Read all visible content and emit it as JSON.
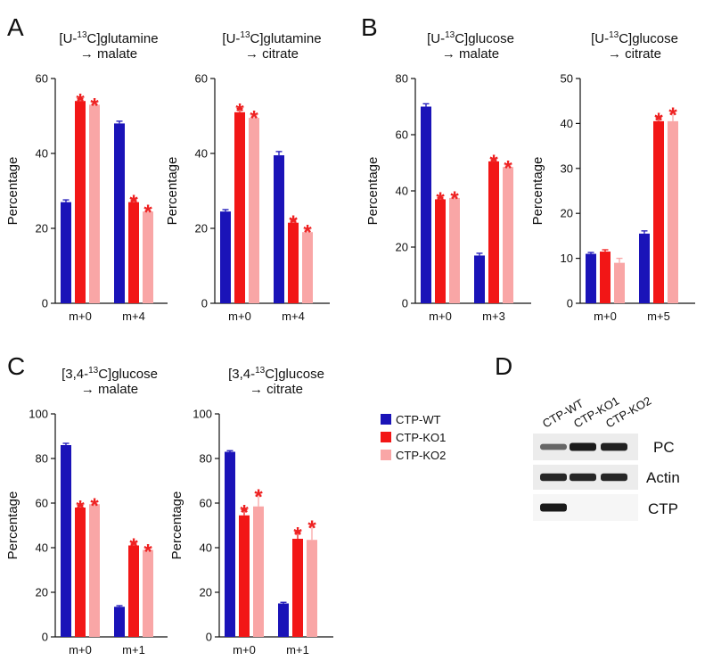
{
  "panels": {
    "A": "A",
    "B": "B",
    "C": "C",
    "D": "D"
  },
  "colors": {
    "CTP-WT": "#1a13b8",
    "CTP-KO1": "#f21616",
    "CTP-KO2": "#f9a6a6",
    "star": "#ee2222",
    "axis": "#111111"
  },
  "legend": [
    "CTP-WT",
    "CTP-KO1",
    "CTP-KO2"
  ],
  "ylabel": "Percentage",
  "chart_data": [
    {
      "type": "bar",
      "panel": "A",
      "title_prefix": "[U-",
      "title_sup": "13",
      "title_suffix": "C]glutamine",
      "title_line2": "→ malate",
      "ylabel": "Percentage",
      "ylim": [
        0,
        60
      ],
      "yticks": [
        0,
        20,
        40,
        60
      ],
      "categories": [
        "m+0",
        "m+4"
      ],
      "series": [
        {
          "name": "CTP-WT",
          "values": [
            27,
            48
          ],
          "errors": [
            0.6,
            0.6
          ]
        },
        {
          "name": "CTP-KO1",
          "values": [
            54,
            27
          ],
          "errors": [
            0.6,
            0.6
          ]
        },
        {
          "name": "CTP-KO2",
          "values": [
            53,
            24.5
          ],
          "errors": [
            0.5,
            0.5
          ]
        }
      ],
      "significant": [
        [
          false,
          true,
          true
        ],
        [
          false,
          true,
          true
        ]
      ]
    },
    {
      "type": "bar",
      "panel": "A",
      "title_prefix": "[U-",
      "title_sup": "13",
      "title_suffix": "C]glutamine",
      "title_line2": "→ citrate",
      "ylabel": "Percentage",
      "ylim": [
        0,
        60
      ],
      "yticks": [
        0,
        20,
        40,
        60
      ],
      "categories": [
        "m+0",
        "m+4"
      ],
      "series": [
        {
          "name": "CTP-WT",
          "values": [
            24.5,
            39.5
          ],
          "errors": [
            0.5,
            1.0
          ]
        },
        {
          "name": "CTP-KO1",
          "values": [
            51,
            21.5
          ],
          "errors": [
            1.0,
            0.7
          ]
        },
        {
          "name": "CTP-KO2",
          "values": [
            49.5,
            19
          ],
          "errors": [
            0.6,
            0.6
          ]
        }
      ],
      "significant": [
        [
          false,
          true,
          true
        ],
        [
          false,
          true,
          true
        ]
      ]
    },
    {
      "type": "bar",
      "panel": "B",
      "title_prefix": "[U-",
      "title_sup": "13",
      "title_suffix": "C]glucose",
      "title_line2": "→ malate",
      "ylabel": "Percentage",
      "ylim": [
        0,
        80
      ],
      "yticks": [
        0,
        20,
        40,
        60,
        80
      ],
      "categories": [
        "m+0",
        "m+3"
      ],
      "series": [
        {
          "name": "CTP-WT",
          "values": [
            70,
            17
          ],
          "errors": [
            1.0,
            0.8
          ]
        },
        {
          "name": "CTP-KO1",
          "values": [
            37,
            50.5
          ],
          "errors": [
            0.7,
            0.6
          ]
        },
        {
          "name": "CTP-KO2",
          "values": [
            37.5,
            48.5
          ],
          "errors": [
            0.6,
            0.6
          ]
        }
      ],
      "significant": [
        [
          false,
          true,
          true
        ],
        [
          false,
          true,
          true
        ]
      ]
    },
    {
      "type": "bar",
      "panel": "B",
      "title_prefix": "[U-",
      "title_sup": "13",
      "title_suffix": "C]glucose",
      "title_line2": "→ citrate",
      "ylabel": "Percentage",
      "ylim": [
        0,
        50
      ],
      "yticks": [
        0,
        10,
        20,
        30,
        40,
        50
      ],
      "categories": [
        "m+0",
        "m+5"
      ],
      "series": [
        {
          "name": "CTP-WT",
          "values": [
            11,
            15.5
          ],
          "errors": [
            0.3,
            0.6
          ]
        },
        {
          "name": "CTP-KO1",
          "values": [
            11.5,
            40.5
          ],
          "errors": [
            0.4,
            0.8
          ]
        },
        {
          "name": "CTP-KO2",
          "values": [
            9,
            40.5
          ],
          "errors": [
            1.0,
            2.0
          ]
        }
      ],
      "significant": [
        [
          false,
          false,
          false
        ],
        [
          false,
          true,
          true
        ]
      ]
    },
    {
      "type": "bar",
      "panel": "C",
      "title_prefix": "[3,4-",
      "title_sup": "13",
      "title_suffix": "C]glucose",
      "title_line2": "→ malate",
      "ylabel": "Percentage",
      "ylim": [
        0,
        100
      ],
      "yticks": [
        0,
        20,
        40,
        60,
        80,
        100
      ],
      "categories": [
        "m+0",
        "m+1"
      ],
      "series": [
        {
          "name": "CTP-WT",
          "values": [
            86,
            13.5
          ],
          "errors": [
            0.8,
            0.5
          ]
        },
        {
          "name": "CTP-KO1",
          "values": [
            58,
            41
          ],
          "errors": [
            1.0,
            1.0
          ]
        },
        {
          "name": "CTP-KO2",
          "values": [
            59.5,
            39
          ],
          "errors": [
            0.5,
            0.5
          ]
        }
      ],
      "significant": [
        [
          false,
          true,
          true
        ],
        [
          false,
          true,
          true
        ]
      ]
    },
    {
      "type": "bar",
      "panel": "C",
      "title_prefix": "[3,4-",
      "title_sup": "13",
      "title_suffix": "C]glucose",
      "title_line2": "→ citrate",
      "ylabel": "Percentage",
      "ylim": [
        0,
        100
      ],
      "yticks": [
        0,
        20,
        40,
        60,
        80,
        100
      ],
      "categories": [
        "m+0",
        "m+1"
      ],
      "series": [
        {
          "name": "CTP-WT",
          "values": [
            83,
            15
          ],
          "errors": [
            0.5,
            0.5
          ]
        },
        {
          "name": "CTP-KO1",
          "values": [
            54.5,
            44
          ],
          "errors": [
            2.5,
            3.0
          ]
        },
        {
          "name": "CTP-KO2",
          "values": [
            58.5,
            43.5
          ],
          "errors": [
            5.5,
            6.5
          ]
        }
      ],
      "significant": [
        [
          false,
          true,
          true
        ],
        [
          false,
          true,
          true
        ]
      ]
    }
  ],
  "blot": {
    "lanes": [
      "CTP-WT",
      "CTP-KO1",
      "CTP-KO2"
    ],
    "rows": [
      {
        "label": "PC",
        "band_intensity": [
          0.45,
          1.0,
          0.95
        ]
      },
      {
        "label": "Actin",
        "band_intensity": [
          0.9,
          0.9,
          0.9
        ]
      },
      {
        "label": "CTP",
        "band_intensity": [
          1.0,
          0.0,
          0.0
        ]
      }
    ]
  }
}
